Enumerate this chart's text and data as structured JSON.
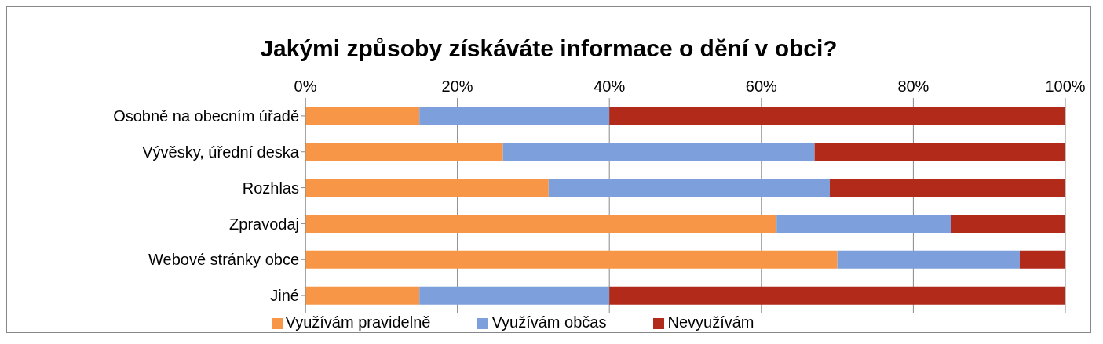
{
  "chart_data": {
    "type": "bar",
    "orientation": "horizontal",
    "stacked": true,
    "title": "Jakými způsoby získáváte informace o dění v obci?",
    "categories": [
      "Osobně na obecním úřadě",
      "Vývěsky, úřední deska",
      "Rozhlas",
      "Zpravodaj",
      "Webové stránky obce",
      "Jiné"
    ],
    "series": [
      {
        "name": "Využívám pravidelně",
        "color": "#f79646",
        "values": [
          15,
          26,
          32,
          62,
          70,
          15
        ]
      },
      {
        "name": "Využívám občas",
        "color": "#7d9fdc",
        "values": [
          25,
          41,
          37,
          23,
          24,
          25
        ]
      },
      {
        "name": "Nevyužívám",
        "color": "#b12a1a",
        "values": [
          60,
          33,
          31,
          15,
          6,
          60
        ]
      }
    ],
    "xlim": [
      0,
      100
    ],
    "xticks": [
      {
        "value": 0,
        "label": "0%"
      },
      {
        "value": 20,
        "label": "20%"
      },
      {
        "value": 40,
        "label": "40%"
      },
      {
        "value": 60,
        "label": "60%"
      },
      {
        "value": 80,
        "label": "80%"
      },
      {
        "value": 100,
        "label": "100%"
      }
    ],
    "grid": "x",
    "legend": "bottom"
  }
}
